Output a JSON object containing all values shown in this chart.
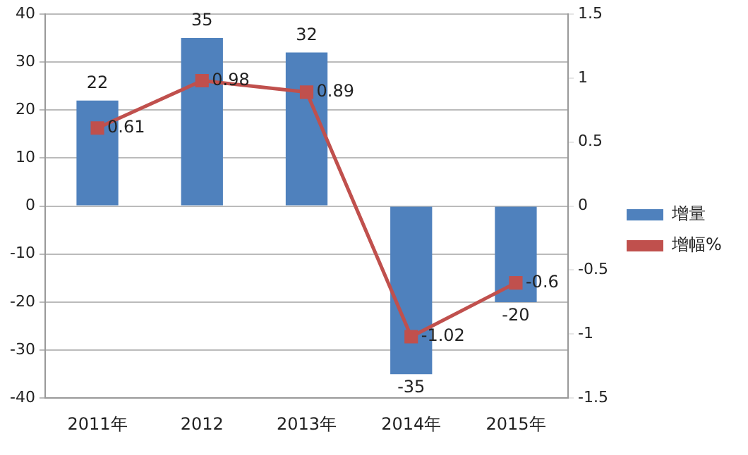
{
  "chart_data": {
    "type": "bar",
    "categories": [
      "2011年",
      "2012",
      "2013年",
      "2014年",
      "2015年"
    ],
    "series": [
      {
        "name": "增量",
        "color": "#4f81bd",
        "values": [
          22,
          35,
          32,
          -35,
          -20
        ]
      },
      {
        "name": "增幅%",
        "type": "line",
        "axis": "y2",
        "color": "#c0504d",
        "values": [
          0.61,
          0.98,
          0.89,
          -1.02,
          -0.6
        ],
        "marker": "square",
        "line_style": "solid"
      }
    ],
    "ylim": [
      -40,
      40
    ],
    "yticks": [
      -40,
      -30,
      -20,
      -10,
      0,
      10,
      20,
      30,
      40
    ],
    "y2lim": [
      -1.5,
      1.5
    ],
    "y2ticks": [
      -1.5,
      -1,
      -0.5,
      0,
      0.5,
      1,
      1.5
    ],
    "grid": "y",
    "legend": "right",
    "data_labels": true
  }
}
